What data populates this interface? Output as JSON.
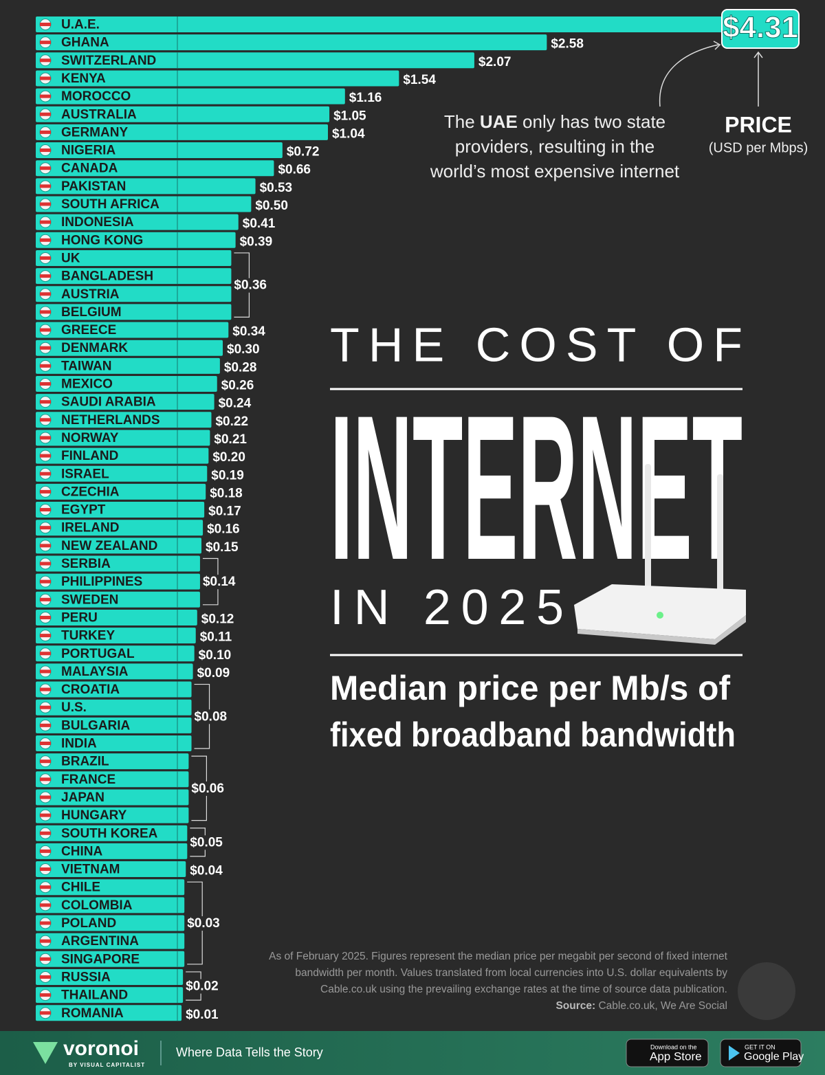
{
  "chart_data": {
    "type": "bar",
    "orientation": "horizontal",
    "color": "#22dcc6",
    "categories": [
      "U.A.E.",
      "GHANA",
      "SWITZERLAND",
      "KENYA",
      "MOROCCO",
      "AUSTRALIA",
      "GERMANY",
      "NIGERIA",
      "CANADA",
      "PAKISTAN",
      "SOUTH AFRICA",
      "INDONESIA",
      "HONG KONG",
      "UK",
      "BANGLADESH",
      "AUSTRIA",
      "BELGIUM",
      "GREECE",
      "DENMARK",
      "TAIWAN",
      "MEXICO",
      "SAUDI ARABIA",
      "NETHERLANDS",
      "NORWAY",
      "FINLAND",
      "ISRAEL",
      "CZECHIA",
      "EGYPT",
      "IRELAND",
      "NEW ZEALAND",
      "SERBIA",
      "PHILIPPINES",
      "SWEDEN",
      "PERU",
      "TURKEY",
      "PORTUGAL",
      "MALAYSIA",
      "CROATIA",
      "U.S.",
      "BULGARIA",
      "INDIA",
      "BRAZIL",
      "FRANCE",
      "JAPAN",
      "HUNGARY",
      "SOUTH KOREA",
      "CHINA",
      "VIETNAM",
      "CHILE",
      "COLOMBIA",
      "POLAND",
      "ARGENTINA",
      "SINGAPORE",
      "RUSSIA",
      "THAILAND",
      "ROMANIA"
    ],
    "values": [
      4.31,
      2.58,
      2.07,
      1.54,
      1.16,
      1.05,
      1.04,
      0.72,
      0.66,
      0.53,
      0.5,
      0.41,
      0.39,
      0.36,
      0.36,
      0.36,
      0.36,
      0.34,
      0.3,
      0.28,
      0.26,
      0.24,
      0.22,
      0.21,
      0.2,
      0.19,
      0.18,
      0.17,
      0.16,
      0.15,
      0.14,
      0.14,
      0.14,
      0.12,
      0.11,
      0.1,
      0.09,
      0.08,
      0.08,
      0.08,
      0.08,
      0.06,
      0.06,
      0.06,
      0.06,
      0.05,
      0.05,
      0.04,
      0.03,
      0.03,
      0.03,
      0.03,
      0.03,
      0.02,
      0.02,
      0.01
    ],
    "value_labels": [
      "$4.31",
      "$2.58",
      "$2.07",
      "$1.54",
      "$1.16",
      "$1.05",
      "$1.04",
      "$0.72",
      "$0.66",
      "$0.53",
      "$0.50",
      "$0.41",
      "$0.39",
      "$0.36",
      null,
      null,
      null,
      "$0.34",
      "$0.30",
      "$0.28",
      "$0.26",
      "$0.24",
      "$0.22",
      "$0.21",
      "$0.20",
      "$0.19",
      "$0.18",
      "$0.17",
      "$0.16",
      "$0.15",
      "$0.14",
      null,
      null,
      "$0.12",
      "$0.11",
      "$0.10",
      "$0.09",
      "$0.08",
      null,
      null,
      null,
      "$0.06",
      null,
      null,
      null,
      "$0.05",
      null,
      "$0.04",
      "$0.03",
      null,
      null,
      null,
      null,
      "$0.02",
      null,
      "$0.01"
    ],
    "value_title": "PRICE",
    "value_unit": "(USD per Mbps)",
    "annotation": {
      "line1": {
        "before": "The ",
        "bold": "UAE",
        "after": " only has two state"
      },
      "line2": "providers, resulting in the",
      "line3": "world’s most expensive internet"
    }
  },
  "title": {
    "line1": "THE COST OF",
    "line2": "INTERNET",
    "line3": "IN 2025",
    "subtitle": [
      "Median price per Mb/s of",
      "fixed broadband bandwidth"
    ]
  },
  "notes": [
    "As of February 2025. Figures represent the median price per megabit per second of fixed internet",
    "bandwidth per month. Values translated from local currencies into U.S. dollar equivalents by",
    "Cable.co.uk using the prevailing exchange rates at the time of source data publication."
  ],
  "source": {
    "label": "Source:",
    "text": " Cable.co.uk, We Are Social"
  },
  "footer": {
    "brand": "voronoi",
    "byline": "BY VISUAL CAPITALIST",
    "tagline": "Where Data Tells the Story",
    "app_store_small": "Download on the",
    "app_store": "App Store",
    "google_small": "GET IT ON",
    "google": "Google Play"
  }
}
